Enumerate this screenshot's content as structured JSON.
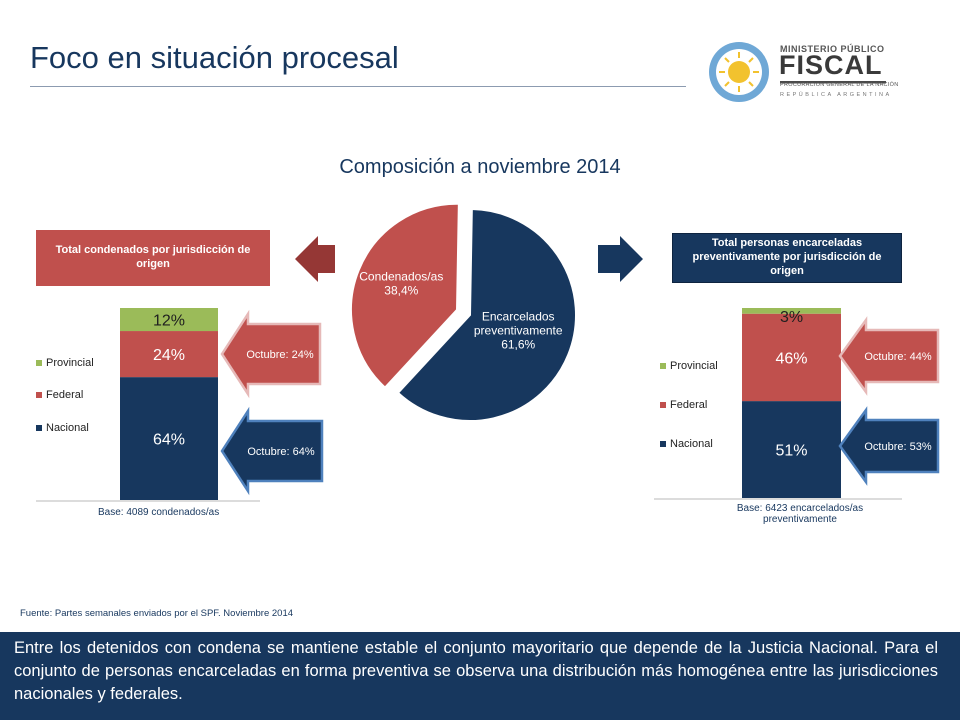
{
  "page": {
    "title": "Foco en situación procesal",
    "logo": {
      "ministerio": "MINISTERIO PÚBLICO",
      "fiscal": "FISCAL",
      "procuracion": "PROCURACIÓN GENERAL DE LA NACIÓN",
      "republica": "REPÚBLICA ARGENTINA"
    },
    "source": "Fuente: Partes semanales enviados por el SPF. Noviembre 2014",
    "summary": "Entre los detenidos con condena se mantiene estable el conjunto mayoritario que depende de la Justicia Nacional. Para el conjunto de personas encarceladas en forma preventiva se observa una distribución más homogénea entre las jurisdicciones nacionales y federales."
  },
  "colors": {
    "navy": "#17375e",
    "red": "#c0504d",
    "green": "#9bbb59",
    "white": "#ffffff"
  },
  "chart_data": [
    {
      "type": "pie",
      "title": "Composición a noviembre 2014",
      "slices": [
        {
          "label": "Encarcelados preventivamente",
          "pct_label": "61,6%",
          "value": 61.6,
          "color": "#17375e"
        },
        {
          "label": "Condenados/as",
          "pct_label": "38,4%",
          "value": 38.4,
          "color": "#c0504d"
        }
      ]
    },
    {
      "type": "bar",
      "stacked": true,
      "title": "Total condenados por jurisdicción de origen",
      "base_note": "Base: 4089 condenados/as",
      "legend": [
        "Provincial",
        "Federal",
        "Nacional"
      ],
      "series": [
        {
          "name": "Nacional",
          "value": 64,
          "label": "64%",
          "color": "#17375e",
          "note": "Octubre: 64%"
        },
        {
          "name": "Federal",
          "value": 24,
          "label": "24%",
          "color": "#c0504d",
          "note": "Octubre: 24%"
        },
        {
          "name": "Provincial",
          "value": 12,
          "label": "12%",
          "color": "#9bbb59"
        }
      ]
    },
    {
      "type": "bar",
      "stacked": true,
      "title": "Total personas encarceladas preventivamente por jurisdicción de origen",
      "base_note": "Base: 6423 encarcelados/as preventivamente",
      "legend": [
        "Provincial",
        "Federal",
        "Nacional"
      ],
      "series": [
        {
          "name": "Nacional",
          "value": 51,
          "label": "51%",
          "color": "#17375e",
          "note": "Octubre: 53%"
        },
        {
          "name": "Federal",
          "value": 46,
          "label": "46%",
          "color": "#c0504d",
          "note": "Octubre: 44%"
        },
        {
          "name": "Provincial",
          "value": 3,
          "label": "3%",
          "color": "#9bbb59"
        }
      ]
    }
  ]
}
